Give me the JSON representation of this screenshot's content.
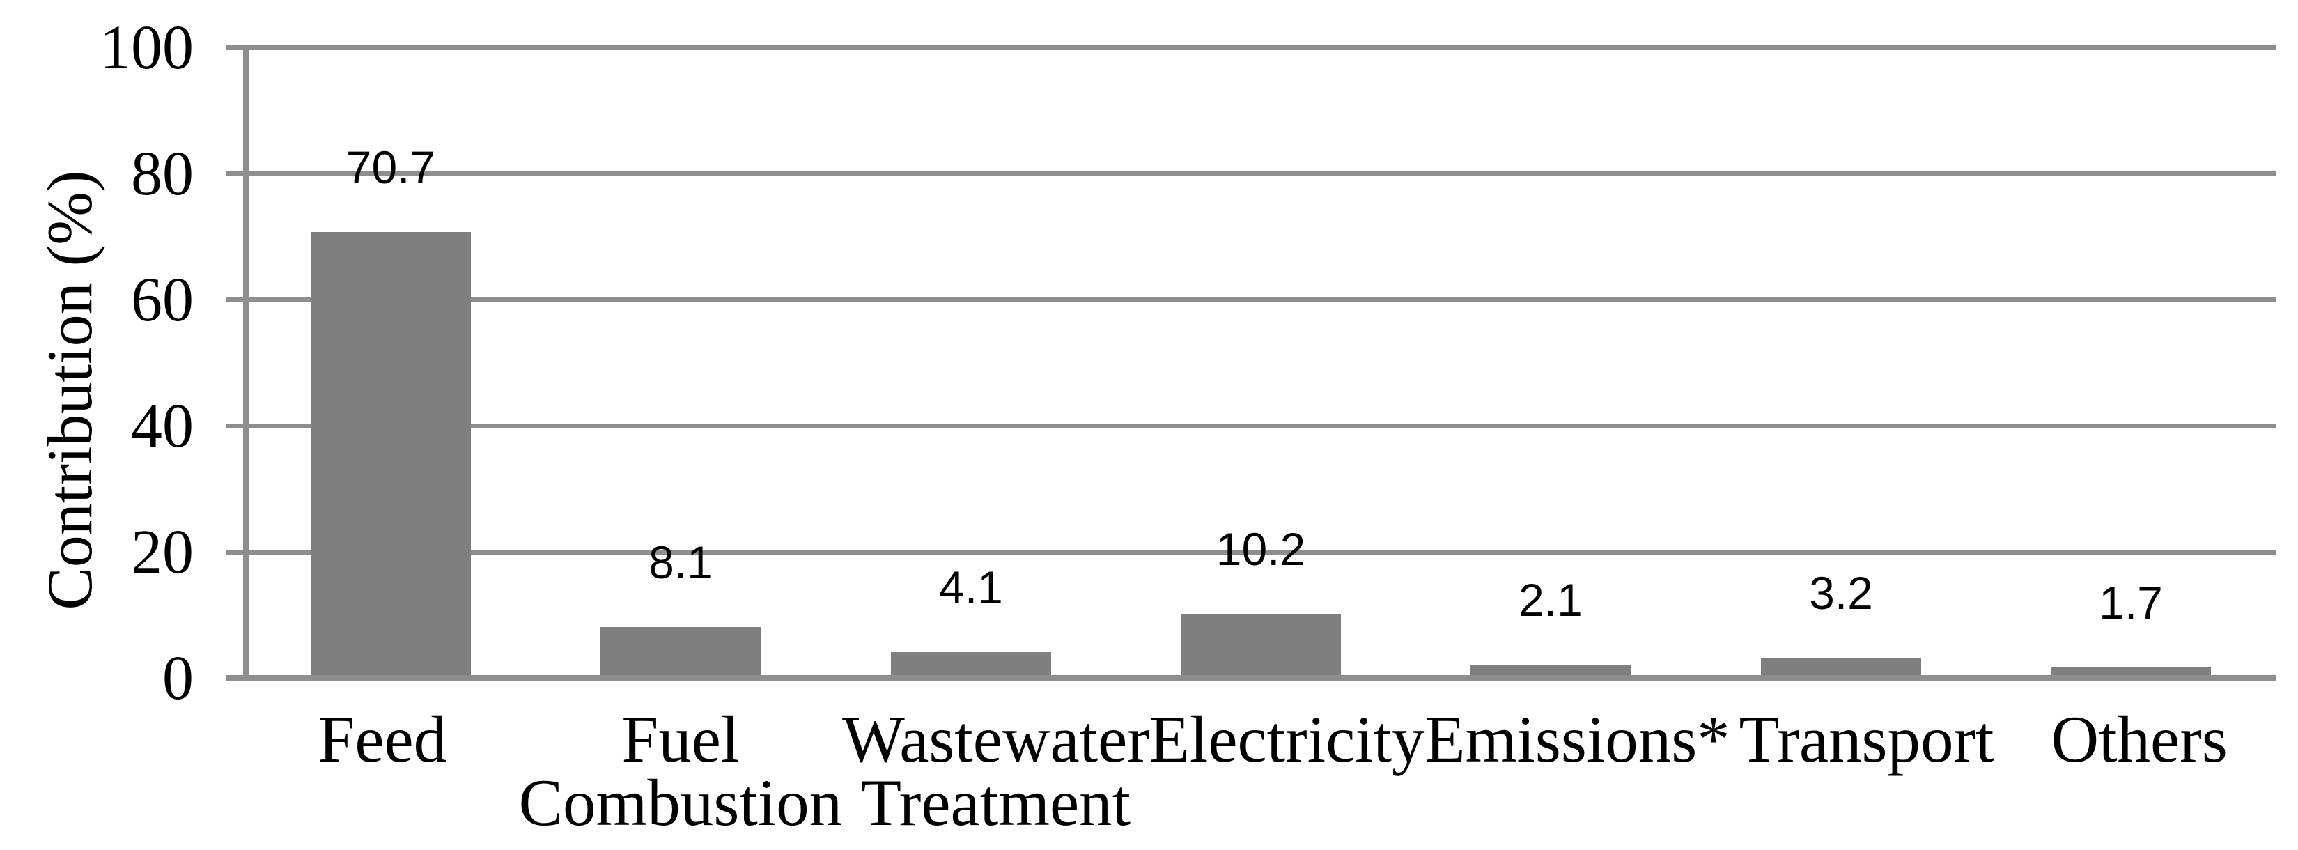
{
  "chart_data": {
    "type": "bar",
    "title": "",
    "xlabel": "",
    "ylabel": "Contribution (%)",
    "categories": [
      "Feed",
      "Fuel Combustion",
      "Wastewater Treatment",
      "Electricity",
      "Emissions*",
      "Transport",
      "Others"
    ],
    "values": [
      70.7,
      8.1,
      4.1,
      10.2,
      2.1,
      3.2,
      1.7
    ],
    "data_labels": [
      "70.7",
      "8.1",
      "4.1",
      "10.2",
      "2.1",
      "3.2",
      "1.7"
    ],
    "ylim": [
      0,
      100
    ],
    "ytick_labels": [
      "100",
      "80",
      "60",
      "40",
      "20",
      "0"
    ],
    "grid": "horizontal",
    "legend_position": "none",
    "bar_color": "#7f7f7f",
    "grid_color": "#8e8e8e",
    "text_color": "#000000",
    "background_color": "#ffffff"
  }
}
